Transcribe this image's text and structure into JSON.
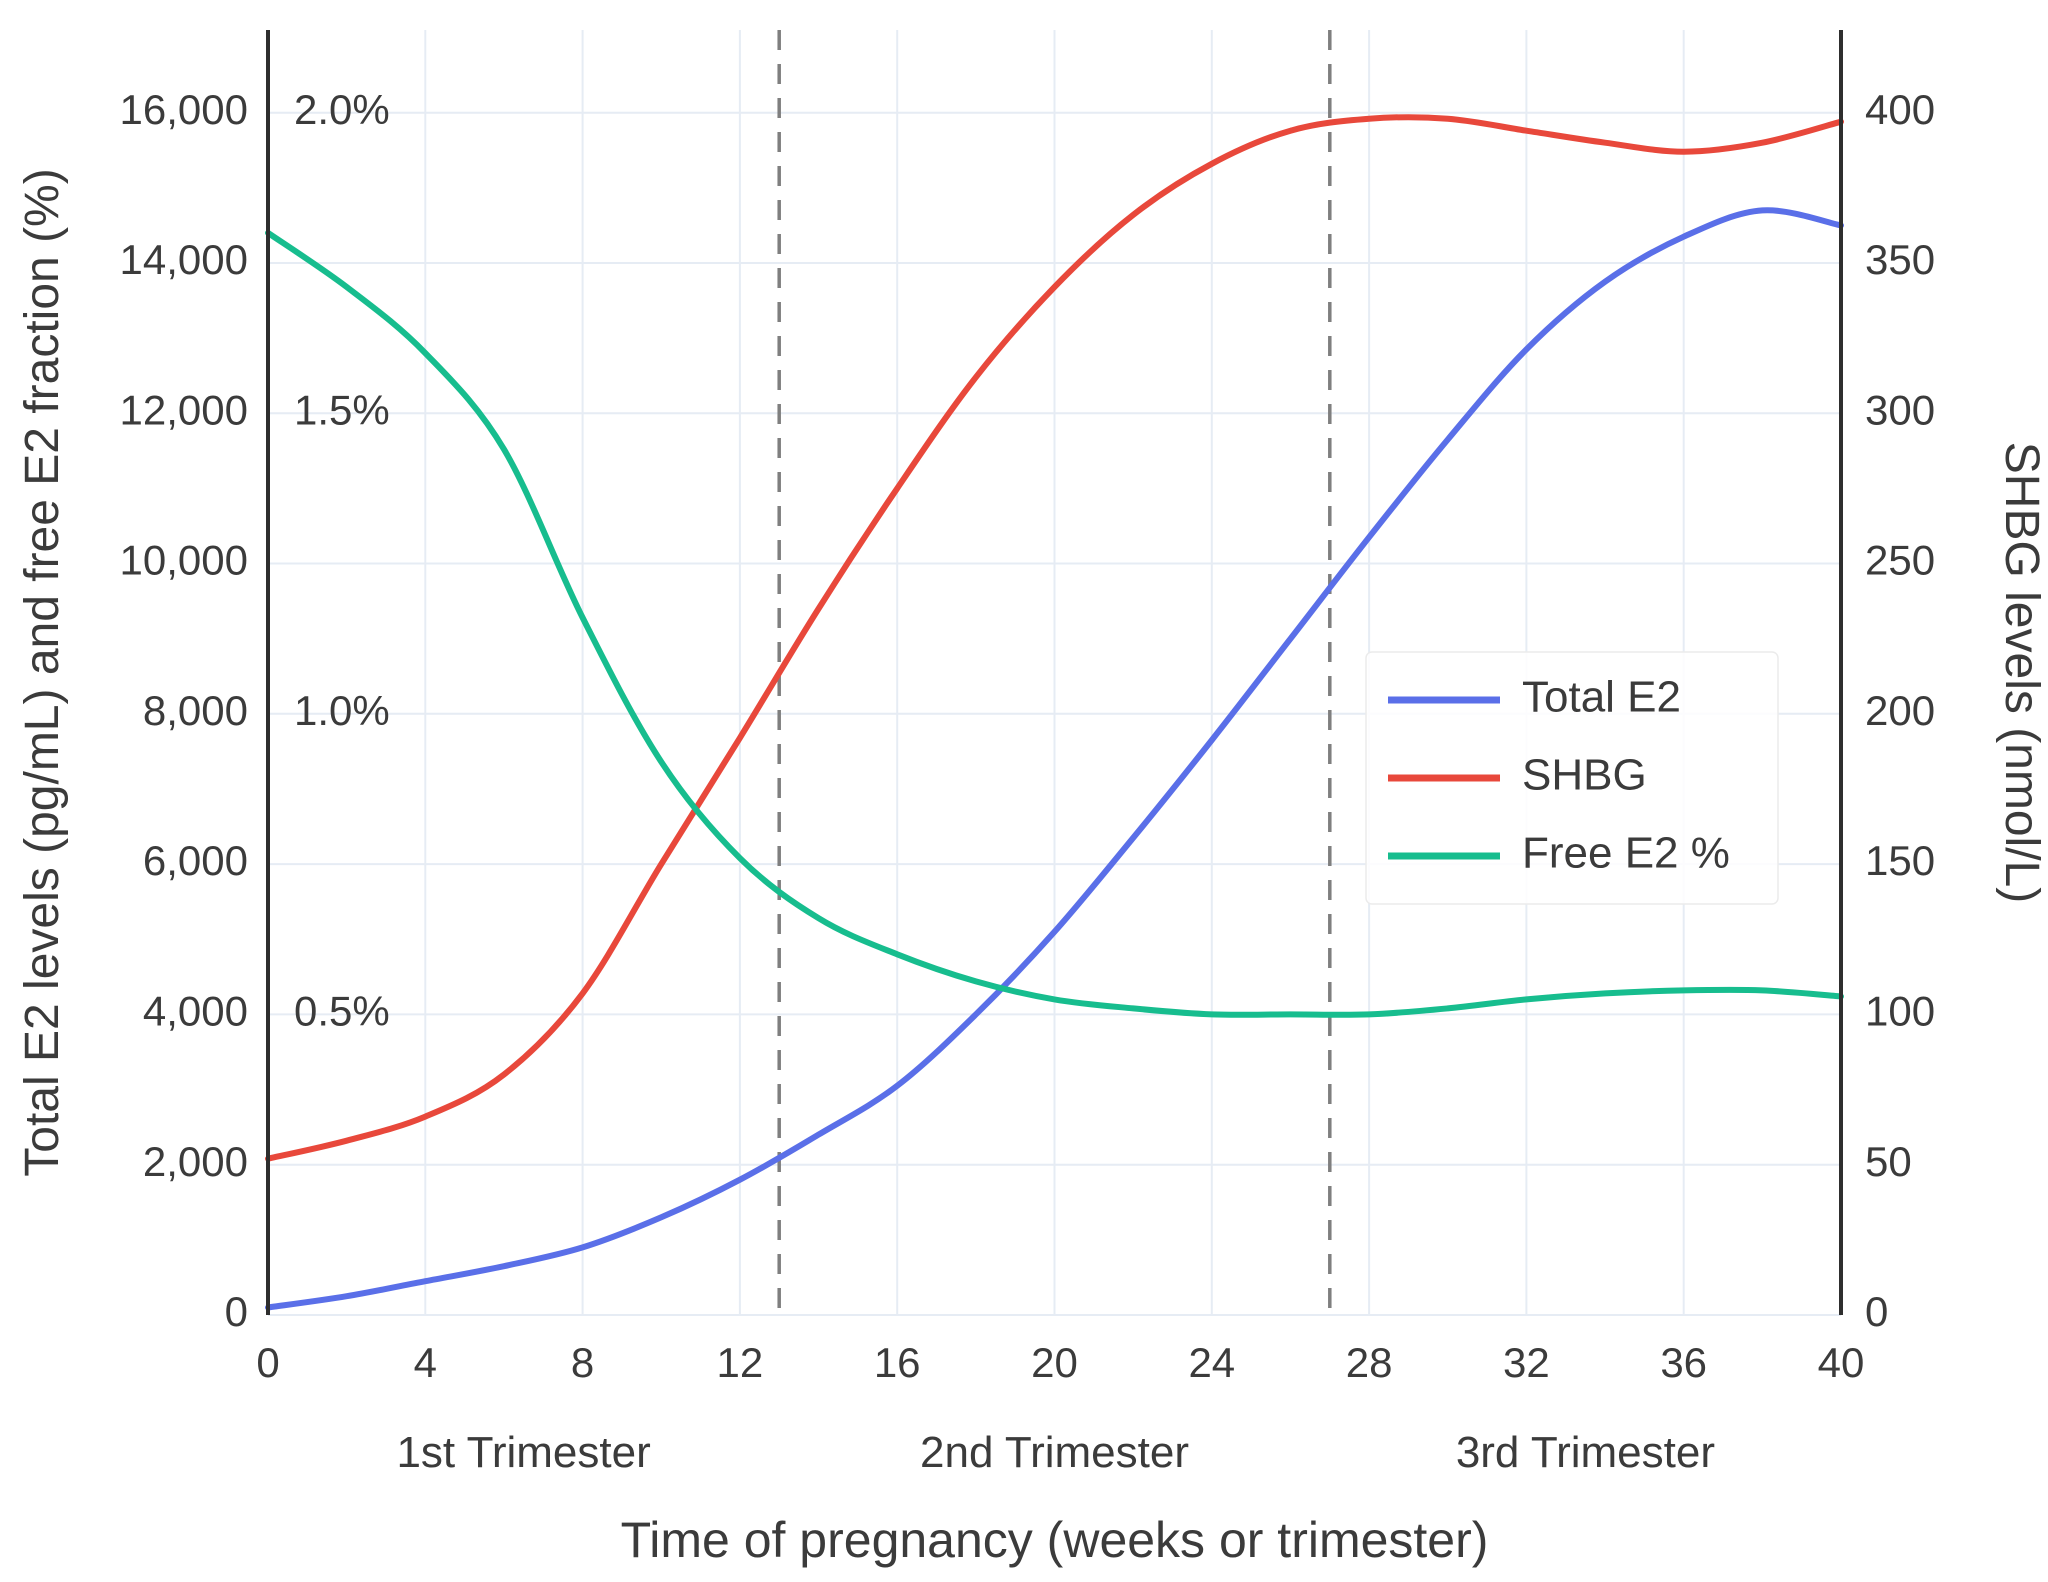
{
  "chart_data": {
    "type": "line",
    "title": "",
    "xlabel": "Time of pregnancy (weeks or trimester)",
    "ylabel_left": "Total E2 levels (pg/mL) and free E2 fraction (%)",
    "ylabel_right": "SHBG levels (nmol/L)",
    "xlim": [
      0,
      40
    ],
    "ylim_left": [
      0,
      17100
    ],
    "ylim_right": [
      0,
      427.5
    ],
    "pct_to_left_factor": 8000,
    "grid": true,
    "legend_position": "center-right",
    "x_ticks": [
      {
        "value": 0,
        "label": "0"
      },
      {
        "value": 4,
        "label": "4"
      },
      {
        "value": 8,
        "label": "8"
      },
      {
        "value": 12,
        "label": "12"
      },
      {
        "value": 16,
        "label": "16"
      },
      {
        "value": 20,
        "label": "20"
      },
      {
        "value": 24,
        "label": "24"
      },
      {
        "value": 28,
        "label": "28"
      },
      {
        "value": 32,
        "label": "32"
      },
      {
        "value": 36,
        "label": "36"
      },
      {
        "value": 40,
        "label": "40"
      }
    ],
    "left_ticks": [
      {
        "value": 0,
        "label": "0"
      },
      {
        "value": 2000,
        "label": "2,000"
      },
      {
        "value": 4000,
        "label": "4,000"
      },
      {
        "value": 6000,
        "label": "6,000"
      },
      {
        "value": 8000,
        "label": "8,000"
      },
      {
        "value": 10000,
        "label": "10,000"
      },
      {
        "value": 12000,
        "label": "12,000"
      },
      {
        "value": 14000,
        "label": "14,000"
      },
      {
        "value": 16000,
        "label": "16,000"
      }
    ],
    "right_ticks": [
      {
        "value": 0,
        "label": "0"
      },
      {
        "value": 50,
        "label": "50"
      },
      {
        "value": 100,
        "label": "100"
      },
      {
        "value": 150,
        "label": "150"
      },
      {
        "value": 200,
        "label": "200"
      },
      {
        "value": 250,
        "label": "250"
      },
      {
        "value": 300,
        "label": "300"
      },
      {
        "value": 350,
        "label": "350"
      },
      {
        "value": 400,
        "label": "400"
      }
    ],
    "pct_labels": [
      {
        "value": 4000,
        "label": "0.5%"
      },
      {
        "value": 8000,
        "label": "1.0%"
      },
      {
        "value": 12000,
        "label": "1.5%"
      },
      {
        "value": 16000,
        "label": "2.0%"
      }
    ],
    "dashed_lines_weeks": [
      13,
      27
    ],
    "trimesters": [
      {
        "x": 6.5,
        "label": "1st Trimester"
      },
      {
        "x": 20,
        "label": "2nd Trimester"
      },
      {
        "x": 33.5,
        "label": "3rd Trimester"
      }
    ],
    "x": [
      0,
      2,
      4,
      6,
      8,
      10,
      12,
      14,
      16,
      18,
      20,
      22,
      24,
      26,
      28,
      30,
      32,
      34,
      36,
      38,
      40
    ],
    "series": [
      {
        "name": "Total E2",
        "axis": "left",
        "color": "#5A6FE8",
        "values": [
          100,
          250,
          450,
          650,
          900,
          1300,
          1800,
          2400,
          3050,
          4000,
          5100,
          6350,
          7650,
          9000,
          10350,
          11650,
          12850,
          13750,
          14350,
          14700,
          14500
        ]
      },
      {
        "name": "SHBG",
        "axis": "right",
        "color": "#E8483B",
        "values": [
          52,
          58,
          66,
          80,
          107,
          150,
          192,
          235,
          275,
          312,
          342,
          366,
          383,
          394,
          398,
          398,
          394,
          390,
          387,
          390,
          397
        ]
      },
      {
        "name": "Free E2 %",
        "axis": "pct",
        "color": "#17BD8E",
        "values": [
          1.8,
          1.71,
          1.6,
          1.44,
          1.16,
          0.92,
          0.76,
          0.66,
          0.6,
          0.555,
          0.525,
          0.51,
          0.5,
          0.5,
          0.5,
          0.51,
          0.525,
          0.535,
          0.54,
          0.54,
          0.53
        ]
      }
    ],
    "legend_entries": [
      "Total E2",
      "SHBG",
      "Free E2 %"
    ],
    "colors": {
      "grid": "#E6ECF4",
      "spine": "#2E2E2E",
      "dashed": "#7F7F7F",
      "text": "#3B3B3B"
    }
  }
}
